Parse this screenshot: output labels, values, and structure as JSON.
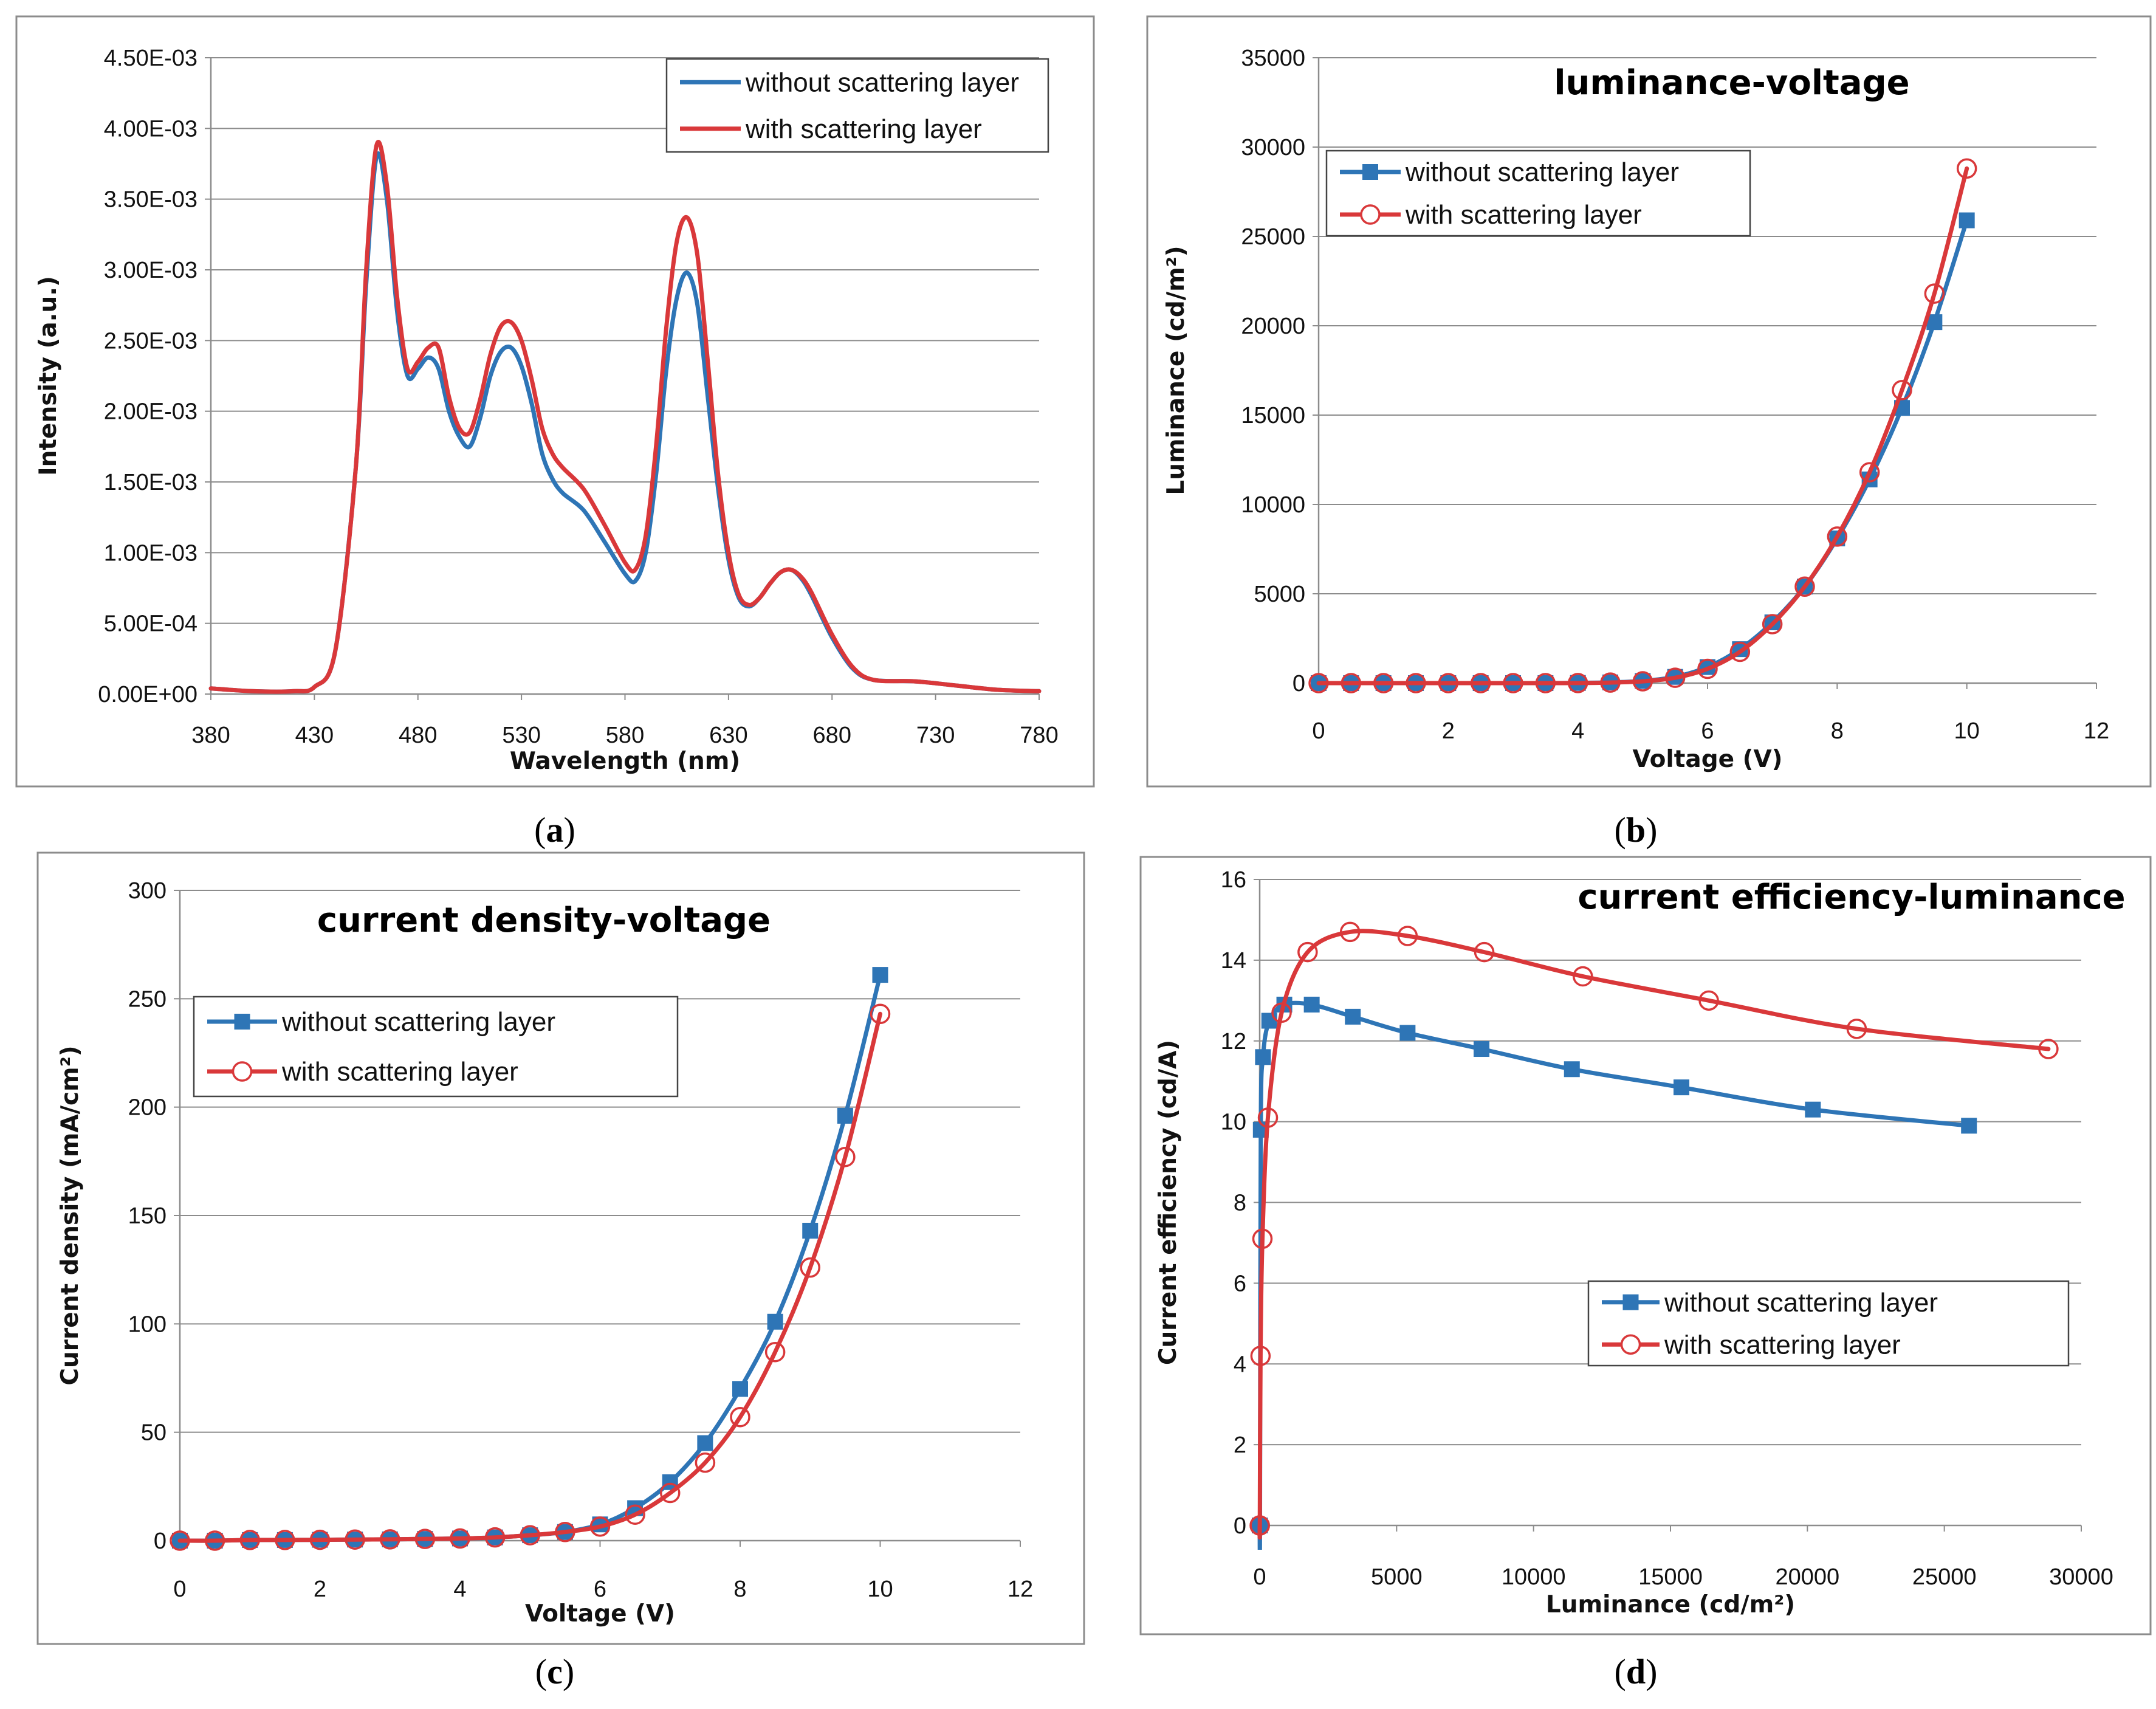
{
  "chart_data": [
    {
      "id": "a",
      "type": "line",
      "caption": "a",
      "title": "",
      "xlabel": "Wavelength (nm)",
      "ylabel": "Intensity (a.u.)",
      "xlim": [
        380,
        780
      ],
      "ylim": [
        0,
        0.0045
      ],
      "x_ticks": [
        380,
        430,
        480,
        530,
        580,
        630,
        680,
        730,
        780
      ],
      "y_ticks": [
        0,
        0.0005,
        0.001,
        0.0015,
        0.002,
        0.0025,
        0.003,
        0.0035,
        0.004,
        0.0045
      ],
      "y_tick_labels": [
        "0.00E+00",
        "5.00E-04",
        "1.00E-03",
        "1.50E-03",
        "2.00E-03",
        "2.50E-03",
        "3.00E-03",
        "3.50E-03",
        "4.00E-03",
        "4.50E-03"
      ],
      "grid": "horizontal",
      "legend_position": "top-right",
      "series": [
        {
          "name": "without scattering layer",
          "color": "#2E75B6",
          "marker": "none",
          "x": [
            380,
            400,
            420,
            430,
            440,
            450,
            455,
            460,
            465,
            470,
            475,
            480,
            485,
            490,
            495,
            500,
            505,
            510,
            515,
            520,
            525,
            530,
            535,
            540,
            545,
            550,
            560,
            570,
            580,
            585,
            590,
            595,
            600,
            605,
            610,
            615,
            620,
            625,
            630,
            635,
            640,
            645,
            650,
            655,
            660,
            665,
            670,
            680,
            690,
            700,
            720,
            740,
            760,
            780
          ],
          "y": [
            4e-05,
            2e-05,
            2e-05,
            5e-05,
            0.0003,
            0.0016,
            0.0029,
            0.0038,
            0.0035,
            0.0027,
            0.00225,
            0.0023,
            0.00238,
            0.0023,
            0.002,
            0.00182,
            0.00175,
            0.00195,
            0.00225,
            0.00242,
            0.00245,
            0.00232,
            0.00205,
            0.0017,
            0.00152,
            0.00142,
            0.0013,
            0.00108,
            0.00085,
            0.0008,
            0.001,
            0.00155,
            0.0023,
            0.0028,
            0.00298,
            0.00275,
            0.0021,
            0.00145,
            0.00095,
            0.00068,
            0.00062,
            0.00068,
            0.00078,
            0.00086,
            0.00088,
            0.00082,
            0.0007,
            0.0004,
            0.00018,
            0.0001,
            9e-05,
            6e-05,
            3e-05,
            2e-05
          ]
        },
        {
          "name": "with scattering layer",
          "color": "#D9383A",
          "marker": "none",
          "x": [
            380,
            400,
            420,
            430,
            440,
            450,
            455,
            460,
            465,
            470,
            475,
            480,
            485,
            490,
            495,
            500,
            505,
            510,
            515,
            520,
            525,
            530,
            535,
            540,
            545,
            550,
            560,
            570,
            580,
            585,
            590,
            595,
            600,
            605,
            610,
            615,
            620,
            625,
            630,
            635,
            640,
            645,
            650,
            655,
            660,
            665,
            670,
            680,
            690,
            700,
            720,
            740,
            760,
            780
          ],
          "y": [
            4e-05,
            2e-05,
            2e-05,
            5e-05,
            0.0003,
            0.0016,
            0.003,
            0.00388,
            0.0036,
            0.0028,
            0.0023,
            0.00235,
            0.00245,
            0.00245,
            0.0021,
            0.00188,
            0.00185,
            0.00208,
            0.0024,
            0.0026,
            0.00263,
            0.0025,
            0.00222,
            0.00188,
            0.0017,
            0.0016,
            0.00145,
            0.0012,
            0.00093,
            0.00088,
            0.00112,
            0.00175,
            0.0026,
            0.0032,
            0.00337,
            0.0031,
            0.00235,
            0.00155,
            0.001,
            0.0007,
            0.00063,
            0.00068,
            0.00078,
            0.00086,
            0.00088,
            0.00083,
            0.00072,
            0.00042,
            0.00019,
            0.0001,
            9e-05,
            6e-05,
            3e-05,
            2e-05
          ]
        }
      ]
    },
    {
      "id": "b",
      "type": "line",
      "caption": "b",
      "title": "luminance-voltage",
      "xlabel": "Voltage (V)",
      "ylabel": "Luminance (cd/m²)",
      "xlim": [
        0,
        12
      ],
      "ylim": [
        0,
        35000
      ],
      "x_ticks": [
        0,
        2,
        4,
        6,
        8,
        10,
        12
      ],
      "y_ticks": [
        0,
        5000,
        10000,
        15000,
        20000,
        25000,
        30000,
        35000
      ],
      "grid": "horizontal",
      "legend_position": "top-left",
      "series": [
        {
          "name": "without scattering layer",
          "color": "#2E75B6",
          "marker": "filled-square",
          "x": [
            0,
            0.5,
            1,
            1.5,
            2,
            2.5,
            3,
            3.5,
            4,
            4.5,
            5,
            5.5,
            6,
            6.5,
            7,
            7.5,
            8,
            8.5,
            9,
            9.5,
            10
          ],
          "y": [
            0,
            0,
            0,
            0,
            0,
            0,
            0,
            0,
            10,
            40,
            120,
            350,
            900,
            1900,
            3400,
            5400,
            8100,
            11400,
            15400,
            20200,
            25900
          ]
        },
        {
          "name": "with scattering layer",
          "color": "#D9383A",
          "marker": "open-circle",
          "x": [
            0,
            0.5,
            1,
            1.5,
            2,
            2.5,
            3,
            3.5,
            4,
            4.5,
            5,
            5.5,
            6,
            6.5,
            7,
            7.5,
            8,
            8.5,
            9,
            9.5,
            10
          ],
          "y": [
            0,
            0,
            0,
            0,
            0,
            0,
            0,
            0,
            5,
            30,
            100,
            300,
            800,
            1750,
            3300,
            5400,
            8200,
            11800,
            16400,
            21800,
            28800
          ]
        }
      ]
    },
    {
      "id": "c",
      "type": "line",
      "caption": "c",
      "title": "current density-voltage",
      "xlabel": "Voltage (V)",
      "ylabel": "Current density (mA/cm²)",
      "xlim": [
        0,
        12
      ],
      "ylim": [
        0,
        300
      ],
      "x_ticks": [
        0,
        2,
        4,
        6,
        8,
        10,
        12
      ],
      "y_ticks": [
        0,
        50,
        100,
        150,
        200,
        250,
        300
      ],
      "grid": "horizontal",
      "legend_position": "middle-left",
      "series": [
        {
          "name": "without scattering layer",
          "color": "#2E75B6",
          "marker": "filled-square",
          "x": [
            0,
            0.5,
            1,
            1.5,
            2,
            2.5,
            3,
            3.5,
            4,
            4.5,
            5,
            5.5,
            6,
            6.5,
            7,
            7.5,
            8,
            8.5,
            9,
            9.5,
            10
          ],
          "y": [
            0,
            0,
            0.3,
            0.3,
            0.4,
            0.5,
            0.6,
            0.8,
            1,
            1.5,
            2.5,
            4,
            7.5,
            15,
            27,
            45,
            70,
            101,
            143,
            196,
            261
          ]
        },
        {
          "name": "with scattering layer",
          "color": "#D9383A",
          "marker": "open-circle",
          "x": [
            0,
            0.5,
            1,
            1.5,
            2,
            2.5,
            3,
            3.5,
            4,
            4.5,
            5,
            5.5,
            6,
            6.5,
            7,
            7.5,
            8,
            8.5,
            9,
            9.5,
            10
          ],
          "y": [
            0,
            0,
            0.3,
            0.3,
            0.4,
            0.5,
            0.6,
            0.8,
            1,
            1.5,
            2.5,
            4,
            6.5,
            12,
            22,
            36,
            57,
            87,
            126,
            177,
            243
          ]
        }
      ]
    },
    {
      "id": "d",
      "type": "line",
      "caption": "d",
      "title": "current efficiency-luminance",
      "xlabel": "Luminance (cd/m²)",
      "ylabel": "Current efficiency (cd/A)",
      "xlim": [
        0,
        30000
      ],
      "ylim": [
        0,
        16
      ],
      "x_ticks": [
        0,
        5000,
        10000,
        15000,
        20000,
        25000,
        30000
      ],
      "y_ticks": [
        0,
        2,
        4,
        6,
        8,
        10,
        12,
        14,
        16
      ],
      "grid": "horizontal",
      "legend_position": "bottom-right",
      "series": [
        {
          "name": "without scattering layer",
          "color": "#2E75B6",
          "marker": "filled-square",
          "x": [
            0,
            10,
            40,
            120,
            350,
            900,
            1900,
            3400,
            5400,
            8100,
            11400,
            15400,
            20200,
            25900
          ],
          "y": [
            0,
            0,
            9.8,
            11.6,
            12.5,
            12.9,
            12.9,
            12.6,
            12.2,
            11.8,
            11.3,
            10.85,
            10.3,
            9.9
          ]
        },
        {
          "name": "with scattering layer",
          "color": "#D9383A",
          "marker": "open-circle",
          "x": [
            0,
            5,
            30,
            100,
            300,
            800,
            1750,
            3300,
            5400,
            8200,
            11800,
            16400,
            21800,
            28800
          ],
          "y": [
            0,
            0,
            4.2,
            7.1,
            10.1,
            12.7,
            14.2,
            14.7,
            14.6,
            14.2,
            13.6,
            13.0,
            12.3,
            11.8
          ]
        }
      ]
    }
  ]
}
